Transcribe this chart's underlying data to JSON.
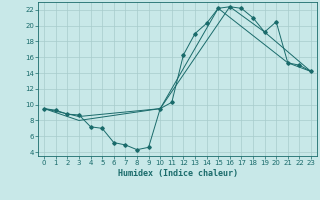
{
  "xlabel": "Humidex (Indice chaleur)",
  "bg_color": "#c8e8e8",
  "line_color": "#1a6b6b",
  "grid_color": "#a8cccc",
  "xlim": [
    -0.5,
    23.5
  ],
  "ylim": [
    3.5,
    23.0
  ],
  "xticks": [
    0,
    1,
    2,
    3,
    4,
    5,
    6,
    7,
    8,
    9,
    10,
    11,
    12,
    13,
    14,
    15,
    16,
    17,
    18,
    19,
    20,
    21,
    22,
    23
  ],
  "yticks": [
    4,
    6,
    8,
    10,
    12,
    14,
    16,
    18,
    20,
    22
  ],
  "line1_x": [
    0,
    1,
    2,
    3,
    4,
    5,
    6,
    7,
    8,
    9,
    10,
    11,
    12,
    13,
    14,
    15,
    16,
    17,
    18,
    19,
    20,
    21,
    22,
    23
  ],
  "line1_y": [
    9.5,
    9.3,
    8.8,
    8.7,
    7.2,
    7.0,
    5.2,
    4.9,
    4.3,
    4.6,
    9.5,
    10.3,
    16.3,
    19.0,
    20.3,
    22.2,
    22.4,
    22.2,
    21.0,
    19.2,
    20.5,
    15.3,
    15.0,
    14.2
  ],
  "line2_x": [
    0,
    3,
    10,
    15,
    21,
    23
  ],
  "line2_y": [
    9.5,
    8.5,
    9.5,
    22.2,
    15.3,
    14.2
  ],
  "line3_x": [
    0,
    3,
    10,
    16,
    19,
    23
  ],
  "line3_y": [
    9.5,
    8.0,
    9.5,
    22.4,
    19.2,
    14.2
  ],
  "tick_fontsize": 5.0,
  "xlabel_fontsize": 6.0
}
